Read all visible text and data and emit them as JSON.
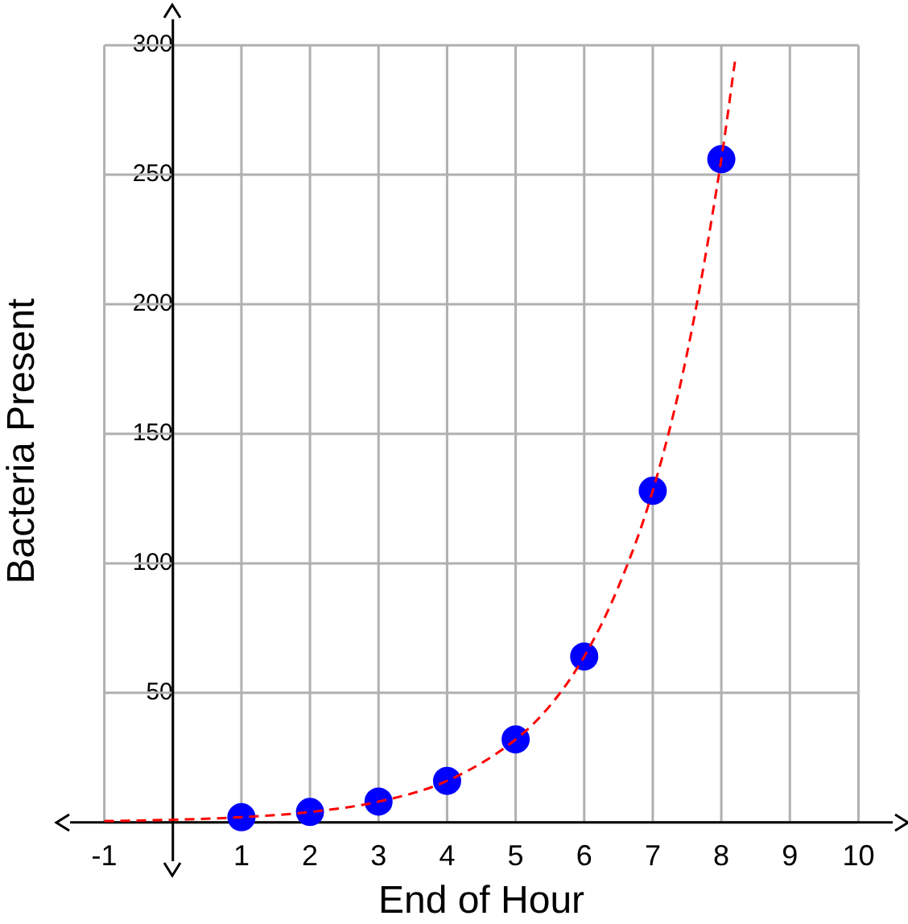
{
  "chart_data": {
    "type": "scatter",
    "xlabel": "End of Hour",
    "ylabel": "Bacteria Present",
    "x": [
      1,
      2,
      3,
      4,
      5,
      6,
      7,
      8
    ],
    "series": [
      {
        "type": "scatter",
        "color": "#0000ff",
        "values": [
          2,
          4,
          8,
          16,
          32,
          64,
          128,
          256
        ],
        "marker": "circle"
      },
      {
        "type": "line",
        "color": "#ff0000",
        "line_style": "dashed",
        "marker": "none",
        "x": [
          -1,
          0,
          1,
          2,
          3,
          4,
          5,
          5.5,
          6,
          6.5,
          7,
          7.5,
          8,
          8.2
        ],
        "values": [
          0.5,
          1,
          2,
          4,
          8,
          16,
          32,
          45,
          64,
          91,
          128,
          181,
          256,
          294
        ]
      }
    ],
    "xlim": [
      -1.5,
      10.5
    ],
    "ylim": [
      -15,
      310
    ],
    "xticks": [
      -1,
      {
        "value": 0,
        "label": null
      },
      1,
      2,
      3,
      4,
      5,
      6,
      7,
      8,
      9,
      10
    ],
    "yticks": [
      {
        "value": 0,
        "label": null
      },
      50,
      100,
      150,
      200,
      250,
      300
    ],
    "grid": true,
    "legend": false
  }
}
